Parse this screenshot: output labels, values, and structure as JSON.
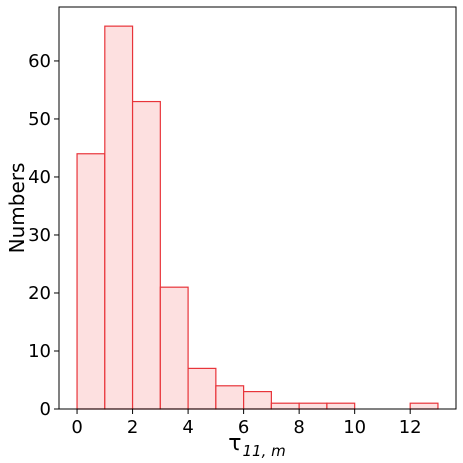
{
  "chart_data": {
    "type": "bar",
    "title": "",
    "xlabel_base": "τ",
    "xlabel_subscript": "11, m",
    "ylabel": "Numbers",
    "bin_width": 1,
    "bins": [
      {
        "x0": 0,
        "x1": 1,
        "value": 44
      },
      {
        "x0": 1,
        "x1": 2,
        "value": 66
      },
      {
        "x0": 2,
        "x1": 3,
        "value": 53
      },
      {
        "x0": 3,
        "x1": 4,
        "value": 21
      },
      {
        "x0": 4,
        "x1": 5,
        "value": 7
      },
      {
        "x0": 5,
        "x1": 6,
        "value": 4
      },
      {
        "x0": 6,
        "x1": 7,
        "value": 3
      },
      {
        "x0": 7,
        "x1": 8,
        "value": 1
      },
      {
        "x0": 8,
        "x1": 9,
        "value": 1
      },
      {
        "x0": 9,
        "x1": 10,
        "value": 1
      },
      {
        "x0": 12,
        "x1": 13,
        "value": 1
      }
    ],
    "xlim": [
      -0.65,
      13.65
    ],
    "ylim": [
      0,
      69.3
    ],
    "xticks": [
      0,
      2,
      4,
      6,
      8,
      10,
      12
    ],
    "yticks": [
      0,
      10,
      20,
      30,
      40,
      50,
      60
    ],
    "bar_fill": "#fde0e0",
    "bar_edge": "#e8343a",
    "grid": false,
    "legend": "none"
  }
}
